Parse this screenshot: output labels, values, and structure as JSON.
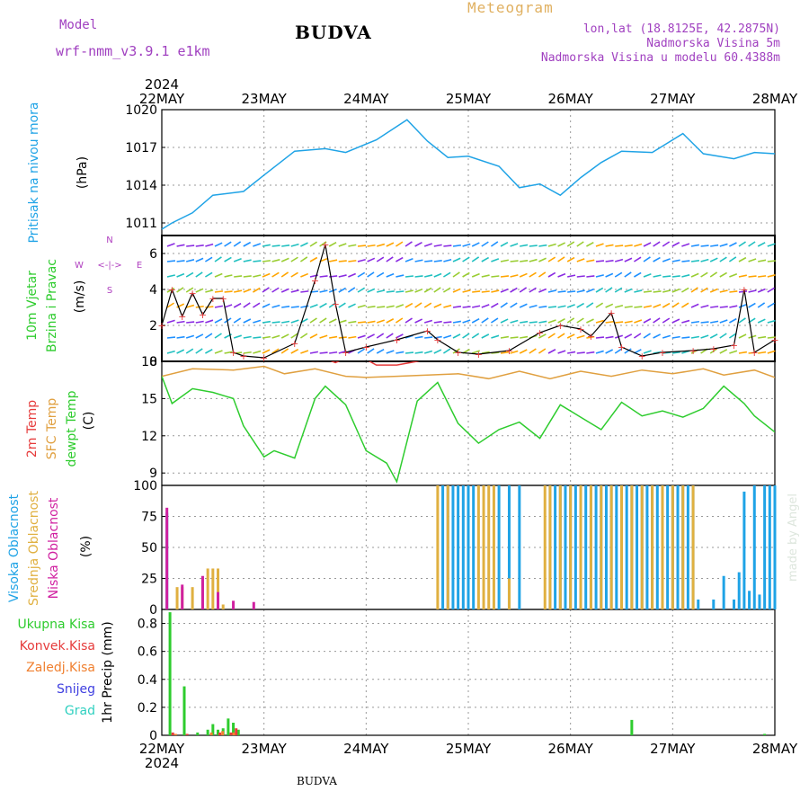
{
  "header": {
    "model_label": "Model",
    "model_name": "wrf-nmm_v3.9.1 e1km",
    "title": "BUDVA",
    "meteogram_label": "Meteogram",
    "location": "lon,lat (18.8125E, 42.2875N)",
    "elevation": "Nadmorska Visina 5m",
    "model_elevation": "Nadmorska Visina u modelu 60.4388m",
    "footer": "BUDVA",
    "credit": "made by Angel"
  },
  "colors": {
    "pressure": "#1fa3e6",
    "wind_speed": "#000000",
    "temp_2m": "#e63b3b",
    "temp_sfc": "#e0a040",
    "dewpoint": "#2ecc2e",
    "cloud_high": "#1fa3e6",
    "cloud_mid": "#e0b040",
    "cloud_low": "#d020a0",
    "precip_total": "#2ecc2e",
    "precip_conv": "#e63b3b",
    "precip_frz": "#f08030",
    "precip_snow": "#4040e0",
    "precip_hail": "#30d0c0",
    "compass": "#b040c0"
  },
  "time_axis": {
    "labels": [
      "22MAY",
      "23MAY",
      "24MAY",
      "25MAY",
      "26MAY",
      "27MAY",
      "28MAY"
    ],
    "year": "2024"
  },
  "chart_data": [
    {
      "type": "line",
      "id": "pressure",
      "ylabel": "Pritisak na nivou mora",
      "unit": "(hPa)",
      "ylim": [
        1010,
        1020
      ],
      "yticks": [
        1011,
        1014,
        1017,
        1020
      ],
      "grid": true,
      "series": [
        {
          "x": [
            0,
            0.1,
            0.3,
            0.5,
            0.8,
            1.0,
            1.3,
            1.6,
            1.8,
            2.1,
            2.4,
            2.6,
            2.8,
            3.0,
            3.3,
            3.5,
            3.7,
            3.9,
            4.1,
            4.3,
            4.5,
            4.8,
            5.1,
            5.3,
            5.6,
            5.8,
            6.0
          ],
          "values": [
            1010.5,
            1011.0,
            1011.8,
            1013.2,
            1013.5,
            1014.8,
            1016.7,
            1016.9,
            1016.6,
            1017.6,
            1019.2,
            1017.5,
            1016.2,
            1016.3,
            1015.5,
            1013.8,
            1014.1,
            1013.2,
            1014.6,
            1015.8,
            1016.7,
            1016.6,
            1018.1,
            1016.5,
            1016.1,
            1016.6,
            1016.5
          ]
        }
      ]
    },
    {
      "type": "line",
      "id": "wind",
      "ylabel": "10m Vjetar Brzina i Pravac",
      "unit": "(m/s)",
      "ylim": [
        0,
        7
      ],
      "yticks": [
        0,
        2,
        4,
        6
      ],
      "grid": true,
      "compass": [
        "W",
        "E",
        "N",
        "S"
      ],
      "series": [
        {
          "x": [
            0,
            0.1,
            0.2,
            0.3,
            0.4,
            0.5,
            0.6,
            0.7,
            0.8,
            1.0,
            1.3,
            1.5,
            1.6,
            1.7,
            1.8,
            2.0,
            2.3,
            2.6,
            2.7,
            2.9,
            3.1,
            3.4,
            3.7,
            3.9,
            4.1,
            4.2,
            4.4,
            4.5,
            4.7,
            4.9,
            5.2,
            5.4,
            5.6,
            5.7,
            5.8,
            6.0
          ],
          "values": [
            2.0,
            4.0,
            2.5,
            3.8,
            2.6,
            3.5,
            3.5,
            0.5,
            0.3,
            0.2,
            1.0,
            4.5,
            6.5,
            3.2,
            0.5,
            0.8,
            1.2,
            1.7,
            1.2,
            0.5,
            0.4,
            0.6,
            1.6,
            2.0,
            1.8,
            1.4,
            2.7,
            0.8,
            0.3,
            0.5,
            0.6,
            0.7,
            0.9,
            4.0,
            0.5,
            1.2
          ]
        }
      ]
    },
    {
      "type": "line",
      "id": "temperature",
      "ylabel": [
        "2m Temp",
        "SFC Temp",
        "dewpt Temp"
      ],
      "unit": "(C)",
      "ylim": [
        8,
        18
      ],
      "yticks": [
        9,
        12,
        15,
        18
      ],
      "grid": true,
      "series": [
        {
          "name": "2m Temp",
          "x": [
            1.5,
            1.7,
            1.9,
            2.1,
            2.3,
            2.5,
            2.6
          ],
          "values": [
            18.5,
            17.9,
            18.6,
            17.7,
            17.7,
            18.0,
            18.2
          ]
        },
        {
          "name": "SFC Temp",
          "x": [
            0,
            0.3,
            0.7,
            1.0,
            1.2,
            1.5,
            1.8,
            2.0,
            2.3,
            2.6,
            2.9,
            3.2,
            3.5,
            3.8,
            4.1,
            4.4,
            4.7,
            5.0,
            5.3,
            5.5,
            5.8,
            6.0
          ],
          "values": [
            16.8,
            17.4,
            17.3,
            17.6,
            17.0,
            17.4,
            16.8,
            16.7,
            16.8,
            16.9,
            17.0,
            16.6,
            17.2,
            16.6,
            17.2,
            16.8,
            17.3,
            17.0,
            17.4,
            16.9,
            17.3,
            16.7
          ]
        },
        {
          "name": "dewpt Temp",
          "x": [
            0,
            0.1,
            0.3,
            0.5,
            0.7,
            0.8,
            1.0,
            1.1,
            1.3,
            1.5,
            1.6,
            1.8,
            2.0,
            2.2,
            2.3,
            2.5,
            2.7,
            2.9,
            3.1,
            3.3,
            3.5,
            3.7,
            3.9,
            4.1,
            4.3,
            4.5,
            4.7,
            4.9,
            5.1,
            5.3,
            5.5,
            5.7,
            5.8,
            6.0
          ],
          "values": [
            16.8,
            14.6,
            15.8,
            15.5,
            15.0,
            12.8,
            10.3,
            10.8,
            10.2,
            15.0,
            16.0,
            14.5,
            10.8,
            9.8,
            8.3,
            14.8,
            16.3,
            13.0,
            11.4,
            12.5,
            13.1,
            11.8,
            14.5,
            13.5,
            12.5,
            14.7,
            13.6,
            14.0,
            13.5,
            14.2,
            16.0,
            14.6,
            13.6,
            12.3
          ]
        }
      ]
    },
    {
      "type": "bar",
      "id": "clouds",
      "ylabel": [
        "Visoka Oblacnost",
        "Srednja Oblacnost",
        "Niska Oblacnost"
      ],
      "unit": "(%)",
      "ylim": [
        0,
        100
      ],
      "yticks": [
        0,
        25,
        50,
        75,
        100
      ],
      "grid": true,
      "series": [
        {
          "name": "Visoka Oblacnost",
          "x": [
            0.05,
            2.75,
            2.8,
            2.85,
            2.9,
            2.95,
            3.0,
            3.05,
            3.3,
            3.4,
            3.5,
            3.8,
            3.85,
            3.9,
            3.95,
            4.0,
            4.05,
            4.1,
            4.15,
            4.2,
            4.25,
            4.3,
            4.35,
            4.4,
            4.45,
            4.5,
            4.55,
            4.6,
            4.65,
            4.7,
            4.75,
            4.8,
            4.85,
            4.9,
            4.95,
            5.0,
            5.05,
            5.1,
            5.15,
            5.2,
            5.25,
            5.4,
            5.5,
            5.6,
            5.65,
            5.7,
            5.75,
            5.8,
            5.85,
            5.9,
            5.95,
            6.0
          ],
          "values": [
            78,
            100,
            100,
            100,
            100,
            100,
            100,
            100,
            100,
            100,
            100,
            100,
            100,
            100,
            100,
            100,
            100,
            100,
            100,
            100,
            100,
            100,
            100,
            100,
            100,
            100,
            100,
            100,
            100,
            100,
            100,
            100,
            100,
            100,
            100,
            100,
            100,
            100,
            100,
            100,
            8,
            8,
            27,
            8,
            30,
            95,
            15,
            100,
            12,
            100,
            100,
            100
          ]
        },
        {
          "name": "Srednja Oblacnost",
          "x": [
            0.15,
            0.2,
            0.3,
            0.4,
            0.45,
            0.5,
            0.55,
            0.6,
            2.7,
            2.8,
            3.1,
            3.15,
            3.2,
            3.25,
            3.4,
            3.75,
            3.8,
            3.9,
            4.0,
            4.1,
            4.2,
            4.3,
            4.4,
            4.5,
            4.6,
            4.7,
            4.8,
            4.9,
            5.0,
            5.1,
            5.2
          ],
          "values": [
            18,
            18,
            18,
            25,
            33,
            33,
            33,
            4,
            100,
            100,
            100,
            100,
            100,
            100,
            25,
            100,
            100,
            100,
            100,
            100,
            100,
            100,
            100,
            100,
            100,
            100,
            100,
            100,
            100,
            100,
            100
          ]
        },
        {
          "name": "Niska Oblacnost",
          "x": [
            0.05,
            0.2,
            0.4,
            0.55,
            0.7,
            0.9
          ],
          "values": [
            82,
            20,
            27,
            14,
            7,
            6
          ]
        }
      ]
    },
    {
      "type": "bar",
      "id": "precip",
      "ylabel": "1hr Precip (mm)",
      "ylim": [
        0,
        0.9
      ],
      "yticks": [
        0,
        0.2,
        0.4,
        0.6,
        0.8
      ],
      "grid": true,
      "legend": [
        "Ukupna Kisa",
        "Konvek.Kisa",
        "Zaledj.Kisa",
        "Snijeg",
        "Grad"
      ],
      "series": [
        {
          "name": "Ukupna Kisa",
          "x": [
            0.08,
            0.22,
            0.35,
            0.45,
            0.5,
            0.55,
            0.6,
            0.65,
            0.7,
            0.75,
            4.6,
            5.9
          ],
          "values": [
            0.88,
            0.35,
            0.02,
            0.04,
            0.08,
            0.04,
            0.05,
            0.12,
            0.09,
            0.04,
            0.11,
            0.01
          ]
        },
        {
          "name": "Konvek.Kisa",
          "x": [
            0.09,
            0.23,
            0.55,
            0.66,
            0.71
          ],
          "values": [
            0.02,
            0.01,
            0.02,
            0.02,
            0.05
          ]
        },
        {
          "name": "Zaledj.Kisa",
          "x": [
            0.1,
            0.45,
            0.56,
            0.67
          ],
          "values": [
            0.01,
            0.02,
            0.03,
            0.02
          ]
        }
      ]
    }
  ]
}
